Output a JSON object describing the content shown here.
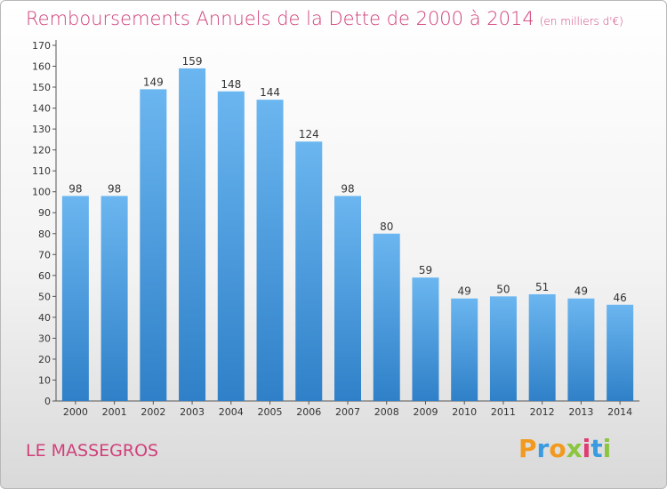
{
  "header": {
    "title": "Remboursements Annuels de la Dette de 2000 à 2014",
    "subtitle": "(en milliers d'€)"
  },
  "footer": {
    "location": "LE MASSEGROS",
    "logo_letters": [
      "P",
      "r",
      "o",
      "x",
      "i",
      "t",
      "i"
    ],
    "logo_colors": [
      "#f29a1f",
      "#3b9be0",
      "#f29a1f",
      "#8cc63f",
      "#e03b72",
      "#3b9be0",
      "#8cc63f"
    ]
  },
  "colors": {
    "bar_top": "#6bb6f0",
    "bar_bottom": "#2f80c8",
    "accent": "#d0407a"
  },
  "chart_data": {
    "type": "bar",
    "categories": [
      "2000",
      "2001",
      "2002",
      "2003",
      "2004",
      "2005",
      "2006",
      "2007",
      "2008",
      "2009",
      "2010",
      "2011",
      "2012",
      "2013",
      "2014"
    ],
    "values": [
      98,
      98,
      149,
      159,
      148,
      144,
      124,
      98,
      80,
      59,
      49,
      50,
      51,
      49,
      46
    ],
    "title": "Remboursements Annuels de la Dette de 2000 à 2014",
    "subtitle": "(en milliers d'€)",
    "ylim": [
      0,
      170
    ],
    "yticks": [
      0,
      10,
      20,
      30,
      40,
      50,
      60,
      70,
      80,
      90,
      100,
      110,
      120,
      130,
      140,
      150,
      160,
      170
    ],
    "grid": false,
    "data_labels": [
      "98",
      "98",
      "149",
      "159",
      "148",
      "144",
      "124",
      "98",
      "80",
      "59",
      "49",
      "50",
      "51",
      "49",
      "46"
    ]
  }
}
